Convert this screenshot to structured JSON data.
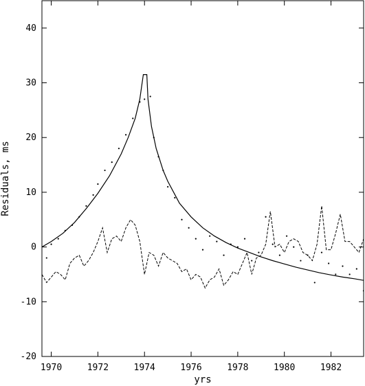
{
  "chart_data": {
    "type": "line",
    "title": "",
    "xlabel": "yrs",
    "ylabel": "Residuals, ms",
    "xlim": [
      1969.6,
      1983.4
    ],
    "ylim": [
      -20,
      45
    ],
    "x_ticks": [
      1970,
      1972,
      1974,
      1976,
      1978,
      1980,
      1982
    ],
    "y_ticks": [
      -20,
      -10,
      0,
      10,
      20,
      30,
      40
    ],
    "x_tick_labels": [
      "1970",
      "1972",
      "1974",
      "1976",
      "1978",
      "1980",
      "1982"
    ],
    "y_tick_labels": [
      "-20",
      "-10",
      "0",
      "10",
      "20",
      "30",
      "40"
    ],
    "grid": false,
    "legend": "none",
    "series": [
      {
        "style": "solid",
        "x": [
          1969.6,
          1970.0,
          1970.5,
          1971.0,
          1971.5,
          1972.0,
          1972.5,
          1973.0,
          1973.3,
          1973.6,
          1973.8,
          1973.95,
          1974.05,
          1974.1,
          1974.15,
          1974.3,
          1974.5,
          1974.8,
          1975.0,
          1975.5,
          1976.0,
          1976.5,
          1977.0,
          1977.5,
          1978.0,
          1978.5,
          1979.0,
          1979.5,
          1980.0,
          1980.5,
          1981.0,
          1981.5,
          1982.0,
          1982.5,
          1983.0,
          1983.4
        ],
        "y": [
          0,
          1.0,
          2.5,
          4.5,
          7.0,
          9.8,
          13.0,
          17.0,
          20.0,
          23.5,
          27.0,
          31.5,
          31.5,
          31.5,
          27.0,
          22.0,
          18.0,
          14.0,
          12.0,
          8.0,
          5.5,
          3.5,
          2.0,
          0.8,
          -0.2,
          -1.0,
          -1.8,
          -2.5,
          -3.1,
          -3.7,
          -4.2,
          -4.7,
          -5.1,
          -5.5,
          -5.8,
          -6.1
        ]
      },
      {
        "style": "dashed",
        "x": [
          1969.6,
          1969.8,
          1970.0,
          1970.2,
          1970.4,
          1970.6,
          1970.8,
          1971.0,
          1971.2,
          1971.4,
          1971.6,
          1971.8,
          1972.0,
          1972.2,
          1972.4,
          1972.6,
          1972.8,
          1973.0,
          1973.2,
          1973.4,
          1973.6,
          1973.8,
          1974.0,
          1974.2,
          1974.4,
          1974.6,
          1974.8,
          1975.0,
          1975.2,
          1975.4,
          1975.6,
          1975.8,
          1976.0,
          1976.2,
          1976.4,
          1976.6,
          1976.8,
          1977.0,
          1977.2,
          1977.4,
          1977.6,
          1977.8,
          1978.0,
          1978.2,
          1978.4,
          1978.6,
          1978.8,
          1979.0,
          1979.2,
          1979.4,
          1979.6,
          1979.8,
          1980.0,
          1980.2,
          1980.4,
          1980.6,
          1980.8,
          1981.0,
          1981.2,
          1981.4,
          1981.6,
          1981.8,
          1982.0,
          1982.2,
          1982.4,
          1982.6,
          1982.8,
          1983.0,
          1983.2,
          1983.4
        ],
        "y": [
          -5.0,
          -6.5,
          -5.5,
          -4.5,
          -5.0,
          -6.0,
          -3.0,
          -2.0,
          -1.5,
          -3.5,
          -2.5,
          -1.0,
          1.0,
          3.5,
          -1.0,
          1.5,
          2.0,
          1.0,
          3.5,
          5.0,
          4.0,
          1.0,
          -5.0,
          -1.0,
          -1.5,
          -3.5,
          -1.0,
          -2.0,
          -2.5,
          -3.0,
          -4.5,
          -4.0,
          -6.0,
          -5.0,
          -5.5,
          -7.5,
          -6.0,
          -5.5,
          -4.0,
          -7.0,
          -6.0,
          -4.5,
          -5.0,
          -3.0,
          -1.0,
          -5.0,
          -2.0,
          -1.5,
          0.5,
          6.5,
          0.0,
          0.5,
          -1.0,
          1.0,
          1.5,
          1.0,
          -1.0,
          -1.5,
          -2.5,
          0.5,
          7.5,
          -0.5,
          -0.5,
          2.5,
          6.0,
          1.0,
          1.0,
          0.0,
          -1.0,
          1.5
        ]
      },
      {
        "style": "dotted",
        "x": [
          1969.8,
          1970.0,
          1970.3,
          1970.6,
          1970.9,
          1971.2,
          1971.5,
          1971.8,
          1972.0,
          1972.3,
          1972.6,
          1972.9,
          1973.2,
          1973.5,
          1973.8,
          1974.0,
          1974.25,
          1974.4,
          1974.6,
          1974.8,
          1975.0,
          1975.3,
          1975.6,
          1975.9,
          1976.2,
          1976.5,
          1976.8,
          1977.1,
          1977.4,
          1977.7,
          1978.0,
          1978.3,
          1978.6,
          1978.9,
          1979.2,
          1979.5,
          1979.8,
          1980.1,
          1980.4,
          1980.7,
          1981.0,
          1981.3,
          1981.6,
          1981.9,
          1982.2,
          1982.5,
          1982.8,
          1983.1,
          1983.4
        ],
        "y": [
          -2.0,
          0.5,
          1.5,
          3.0,
          4.0,
          5.5,
          7.5,
          9.5,
          11.5,
          14.0,
          15.5,
          18.0,
          20.5,
          23.5,
          26.5,
          27.0,
          27.5,
          20.0,
          16.5,
          14.0,
          11.0,
          9.0,
          5.0,
          3.5,
          1.5,
          -0.5,
          2.0,
          1.0,
          -1.5,
          0.5,
          0.0,
          1.5,
          -2.5,
          -1.0,
          5.5,
          0.5,
          -1.5,
          2.0,
          0.0,
          -2.5,
          -1.5,
          -6.5,
          -1.0,
          -3.0,
          -5.0,
          -3.5,
          -5.0,
          -4.0,
          -8.0
        ]
      }
    ]
  }
}
